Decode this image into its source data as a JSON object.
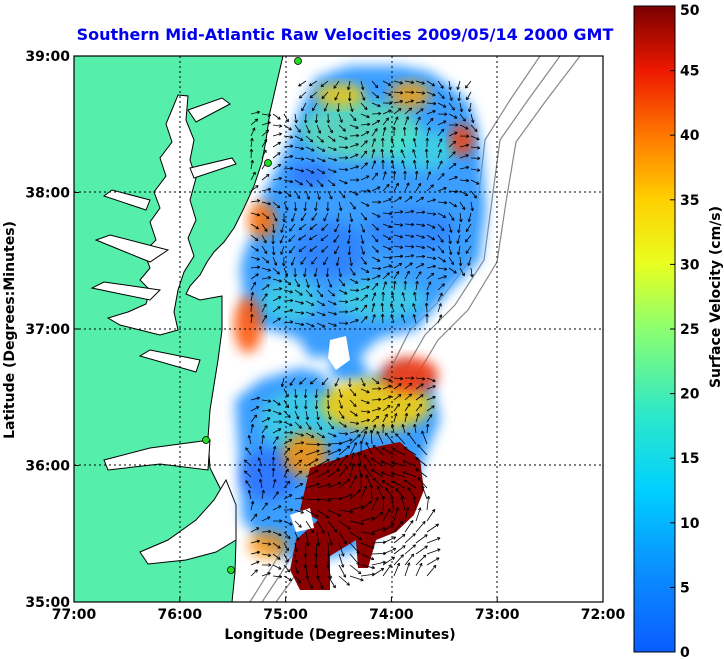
{
  "title": "Southern Mid-Atlantic Raw Velocities 2009/05/14 2000 GMT",
  "xlabel": "Longitude (Degrees:Minutes)",
  "ylabel": "Latitude (Degrees:Minutes)",
  "x_ticks": [
    "77:00",
    "76:00",
    "75:00",
    "74:00",
    "73:00",
    "72:00"
  ],
  "y_ticks": [
    "39:00",
    "38:00",
    "37:00",
    "36:00",
    "35:00"
  ],
  "colorbar": {
    "label": "Surface Velocity (cm/s)",
    "ticks": [
      "0",
      "5",
      "10",
      "15",
      "20",
      "25",
      "30",
      "35",
      "40",
      "45",
      "50"
    ]
  },
  "colors": {
    "land": "#55eeaa",
    "title": "#0000ee",
    "grid": "#000000",
    "depth_contours": "#888888",
    "stations": "#22dd22"
  }
}
